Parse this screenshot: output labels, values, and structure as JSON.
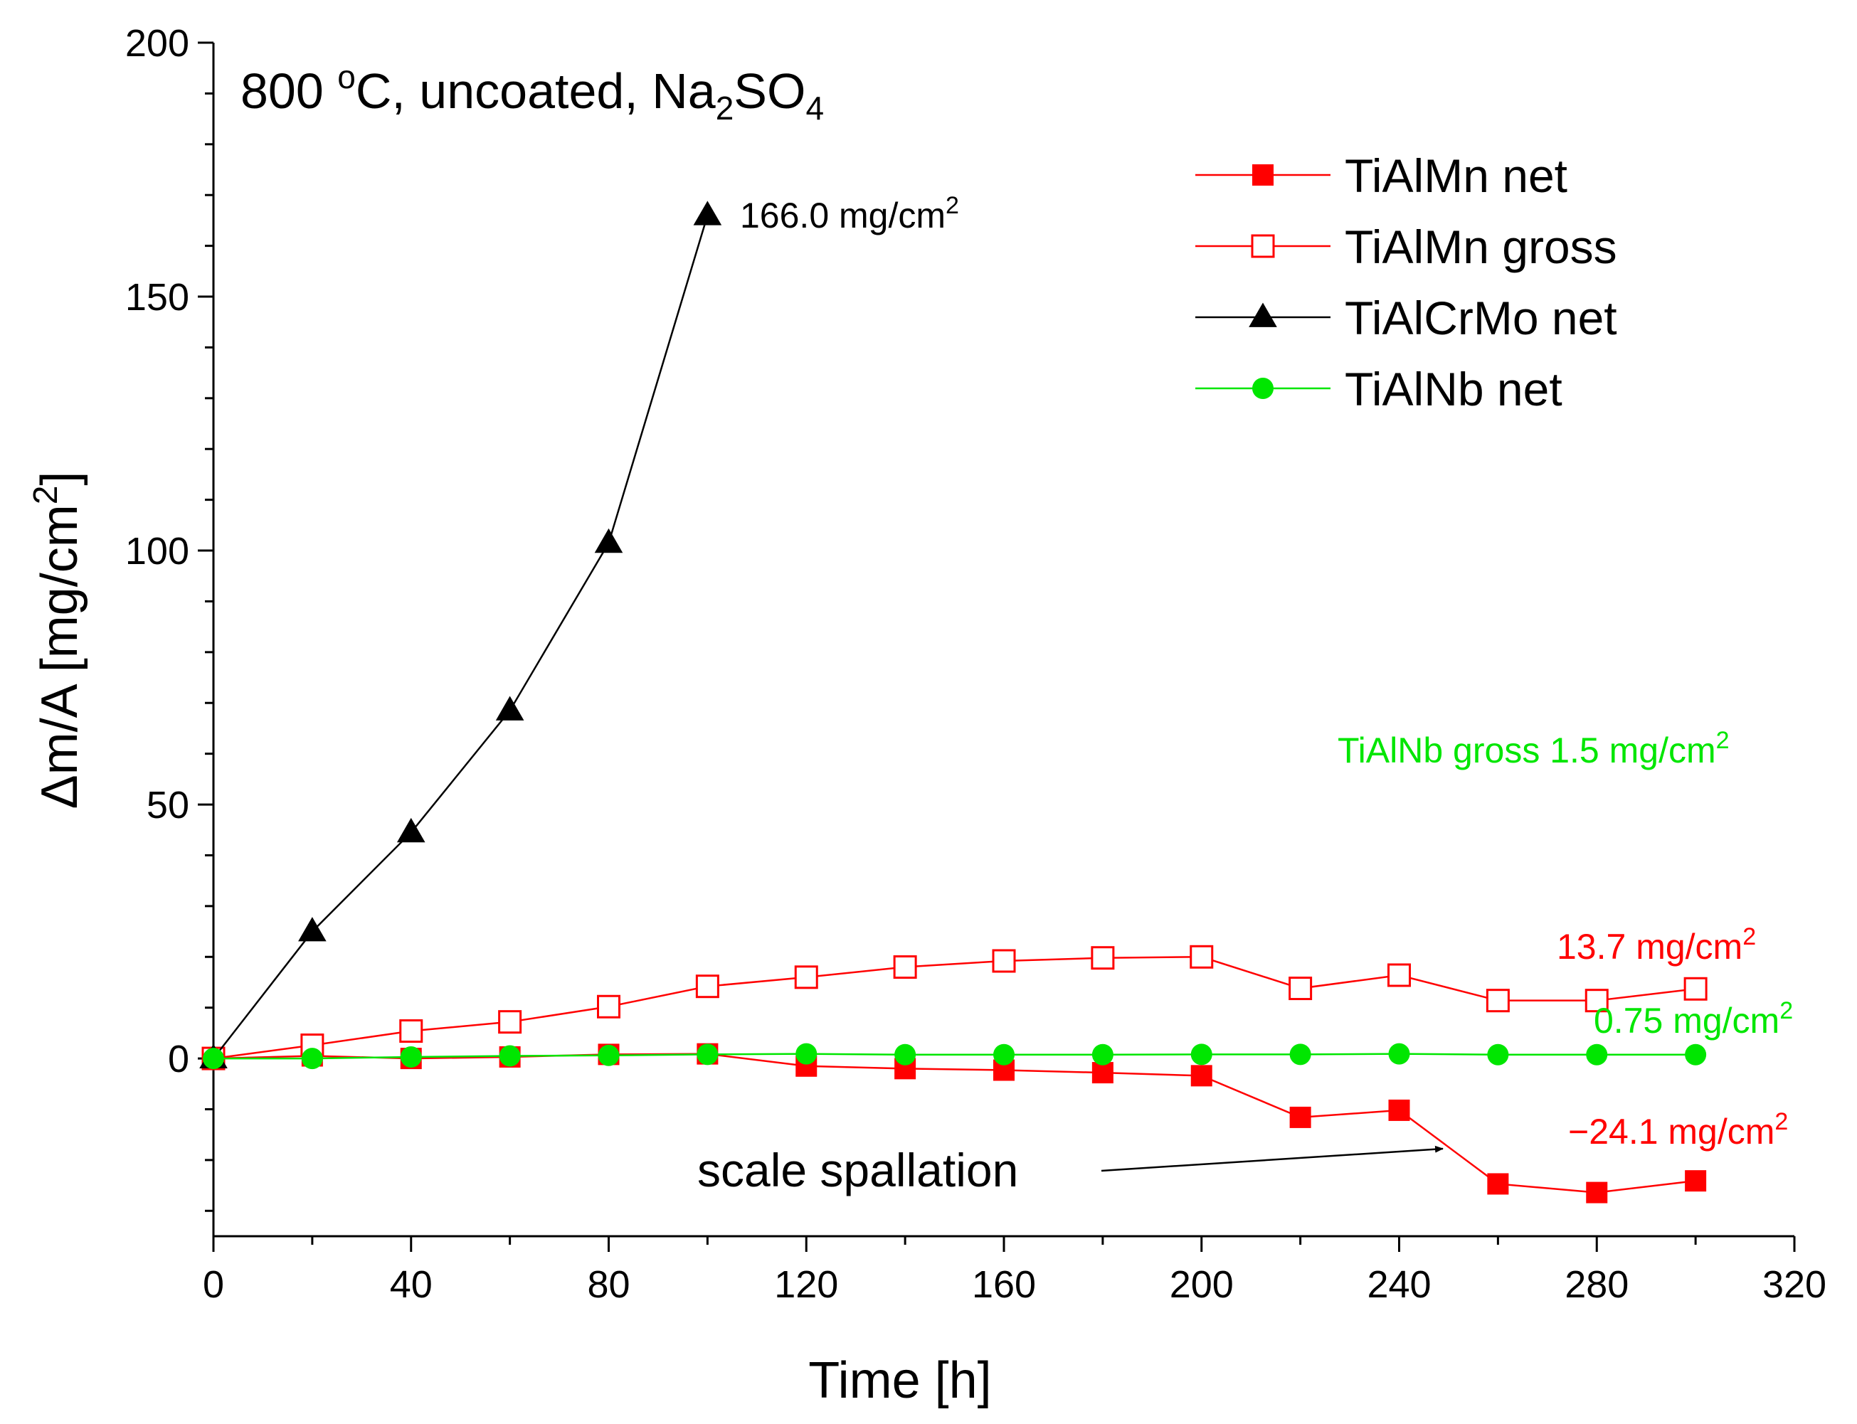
{
  "chart_data": {
    "type": "line",
    "title": "",
    "title_parts": {
      "main": "800 ",
      "degree": "o",
      "after_degree": "C, uncoated, Na",
      "sub1": "2",
      "mid": "SO",
      "sub2": "4"
    },
    "xlabel": "Time [h]",
    "ylabel": {
      "main": "Δm/A [mg/cm",
      "sup": "2",
      "end": "]"
    },
    "xlim": [
      0,
      320
    ],
    "ylim": [
      -35,
      200
    ],
    "x_ticks": [
      0,
      40,
      80,
      120,
      160,
      200,
      240,
      280,
      320
    ],
    "y_ticks": [
      0,
      50,
      100,
      150,
      200
    ],
    "grid": false,
    "legend": "top-right",
    "series": [
      {
        "name": "TiAlMn net",
        "color": "#ff0000",
        "marker": "square-filled",
        "x": [
          0,
          20,
          40,
          60,
          80,
          100,
          120,
          140,
          160,
          180,
          200,
          220,
          240,
          260,
          280,
          300
        ],
        "y": [
          0,
          0.5,
          0,
          0.3,
          0.8,
          0.9,
          -1.5,
          -2.0,
          -2.3,
          -2.8,
          -3.4,
          -11.6,
          -10.2,
          -24.7,
          -26.4,
          -24.1
        ]
      },
      {
        "name": "TiAlMn gross",
        "color": "#ff0000",
        "marker": "square-open",
        "x": [
          0,
          20,
          40,
          60,
          80,
          100,
          120,
          140,
          160,
          180,
          200,
          220,
          240,
          260,
          280,
          300
        ],
        "y": [
          0,
          2.6,
          5.4,
          7.2,
          10.2,
          14.2,
          16.0,
          18.0,
          19.2,
          19.8,
          20.0,
          13.8,
          16.4,
          11.4,
          11.4,
          13.7
        ]
      },
      {
        "name": "TiAlCrMo net",
        "color": "#000000",
        "marker": "triangle-filled",
        "x": [
          0,
          20,
          40,
          60,
          80,
          100
        ],
        "y": [
          0,
          25,
          44.5,
          68.5,
          101.5,
          166.0
        ]
      },
      {
        "name": "TiAlNb net",
        "color": "#00e600",
        "marker": "circle-filled",
        "x": [
          0,
          20,
          40,
          60,
          80,
          100,
          120,
          140,
          160,
          180,
          200,
          220,
          240,
          260,
          280,
          300
        ],
        "y": [
          0,
          0,
          0.3,
          0.5,
          0.6,
          0.8,
          0.9,
          0.75,
          0.75,
          0.75,
          0.8,
          0.8,
          0.9,
          0.75,
          0.75,
          0.75
        ]
      }
    ],
    "annotations": [
      {
        "id": "crmo",
        "main": "166.0 mg/cm",
        "sup": "2",
        "color": "#000000"
      },
      {
        "id": "nbgross",
        "main": "TiAlNb gross 1.5 mg/cm",
        "sup": "2",
        "color": "#00e600"
      },
      {
        "id": "mngross",
        "main": "13.7 mg/cm",
        "sup": "2",
        "color": "#ff0000"
      },
      {
        "id": "nbnet",
        "main": "0.75 mg/cm",
        "sup": "2",
        "color": "#00e600"
      },
      {
        "id": "mnnet",
        "main": "−24.1 mg/cm",
        "sup": "2",
        "color": "#ff0000"
      },
      {
        "id": "spall",
        "main": "scale spallation",
        "sup": "",
        "color": "#000000"
      }
    ]
  }
}
